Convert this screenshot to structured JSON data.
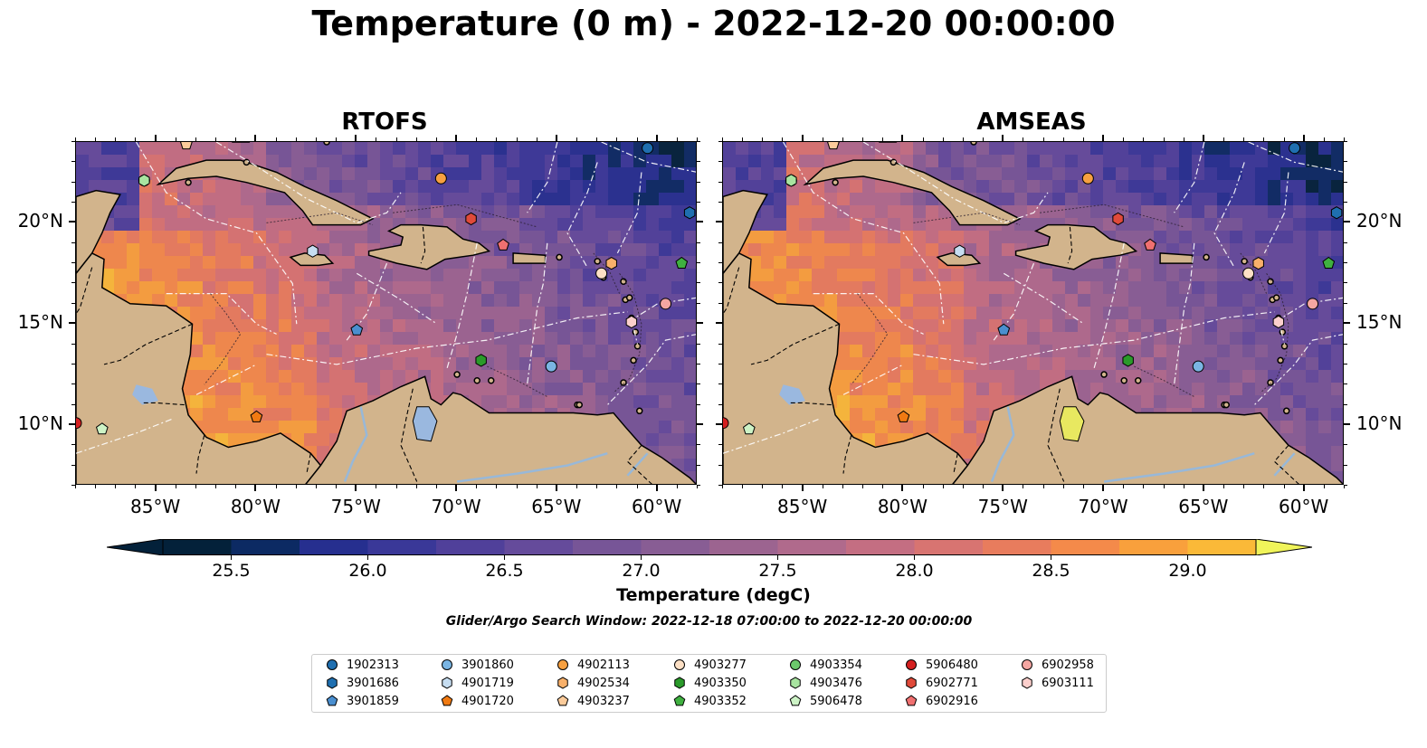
{
  "title": "Temperature (0 m) - 2022-12-20 00:00:00",
  "panels": [
    {
      "title": "RTOFS"
    },
    {
      "title": "AMSEAS"
    }
  ],
  "map_extent": {
    "lon_min": -89,
    "lon_max": -58,
    "lat_min": 7,
    "lat_max": 24
  },
  "axes": {
    "lon_ticks": [
      {
        "value": -85,
        "label": "85°W"
      },
      {
        "value": -80,
        "label": "80°W"
      },
      {
        "value": -75,
        "label": "75°W"
      },
      {
        "value": -70,
        "label": "70°W"
      },
      {
        "value": -65,
        "label": "65°W"
      },
      {
        "value": -60,
        "label": "60°W"
      }
    ],
    "lat_ticks": [
      {
        "value": 20,
        "label": "20°N"
      },
      {
        "value": 15,
        "label": "15°N"
      },
      {
        "value": 10,
        "label": "10°N"
      }
    ]
  },
  "colorbar": {
    "label": "Temperature (degC)",
    "min": 25.25,
    "max": 29.25,
    "step": 0.25,
    "extend": "both",
    "ticks": [
      "25.5",
      "26.0",
      "26.5",
      "27.0",
      "27.5",
      "28.0",
      "28.5",
      "29.0"
    ],
    "colors": [
      "#03213a",
      "#0c2a63",
      "#262f8f",
      "#3a3898",
      "#50409a",
      "#654b9b",
      "#775597",
      "#885d94",
      "#9c6490",
      "#b06a8c",
      "#c46e82",
      "#d87471",
      "#e87c5d",
      "#f48a4a",
      "#f9a03c",
      "#fab938",
      "#f7d844"
    ],
    "extend_low_color": "#03213a",
    "extend_high_color": "#f0f45a"
  },
  "search_window": "Glider/Argo Search Window: 2022-12-18 07:00:00 to 2022-12-20 00:00:00",
  "floats": [
    {
      "id": "1902313",
      "marker": "circle",
      "color": "#1f6fb0",
      "lon": -60.5,
      "lat": 23.7
    },
    {
      "id": "3901686",
      "marker": "hexagon",
      "color": "#1f6fb0",
      "lon": -58.4,
      "lat": 20.5
    },
    {
      "id": "3901859",
      "marker": "pentagon",
      "color": "#4a8fd0",
      "lon": -75.0,
      "lat": 14.7
    },
    {
      "id": "3901860",
      "marker": "circle",
      "color": "#7ab5e3",
      "lon": -65.3,
      "lat": 12.9
    },
    {
      "id": "4901719",
      "marker": "hexagon",
      "color": "#c6ddf1",
      "lon": -77.2,
      "lat": 18.6
    },
    {
      "id": "4901720",
      "marker": "pentagon",
      "color": "#f07a12",
      "lon": -80.0,
      "lat": 10.4
    },
    {
      "id": "4902113",
      "marker": "circle",
      "color": "#f7a040",
      "lon": -70.8,
      "lat": 22.2
    },
    {
      "id": "4902534",
      "marker": "hexagon",
      "color": "#f8b06a",
      "lon": -62.3,
      "lat": 18.0
    },
    {
      "id": "4903237",
      "marker": "pentagon",
      "color": "#fbcb9a",
      "lon": -83.5,
      "lat": 23.9
    },
    {
      "id": "4903277",
      "marker": "circle",
      "color": "#fde0c5",
      "lon": -62.8,
      "lat": 17.5
    },
    {
      "id": "4903350",
      "marker": "hexagon",
      "color": "#2a9a2a",
      "lon": -68.8,
      "lat": 13.2
    },
    {
      "id": "4903352",
      "marker": "pentagon",
      "color": "#3fb040",
      "lon": -58.8,
      "lat": 18.0
    },
    {
      "id": "4903354",
      "marker": "circle",
      "color": "#6cc96c",
      "lon": -85.6,
      "lat": 22.1
    },
    {
      "id": "4903476",
      "marker": "hexagon",
      "color": "#a8e4a0",
      "lon": -85.6,
      "lat": 22.1
    },
    {
      "id": "5906478",
      "marker": "pentagon",
      "color": "#cdf3c6",
      "lon": -87.7,
      "lat": 9.8
    },
    {
      "id": "5906480",
      "marker": "circle",
      "color": "#d42020",
      "lon": -89.0,
      "lat": 10.1
    },
    {
      "id": "6902771",
      "marker": "hexagon",
      "color": "#e04a3a",
      "lon": -69.3,
      "lat": 20.2
    },
    {
      "id": "6902916",
      "marker": "pentagon",
      "color": "#f07070",
      "lon": -67.7,
      "lat": 18.9
    },
    {
      "id": "6902958",
      "marker": "circle",
      "color": "#f4a6a2",
      "lon": -59.6,
      "lat": 16.0
    },
    {
      "id": "6903111",
      "marker": "hexagon",
      "color": "#fccfcc",
      "lon": -61.3,
      "lat": 15.1
    }
  ]
}
